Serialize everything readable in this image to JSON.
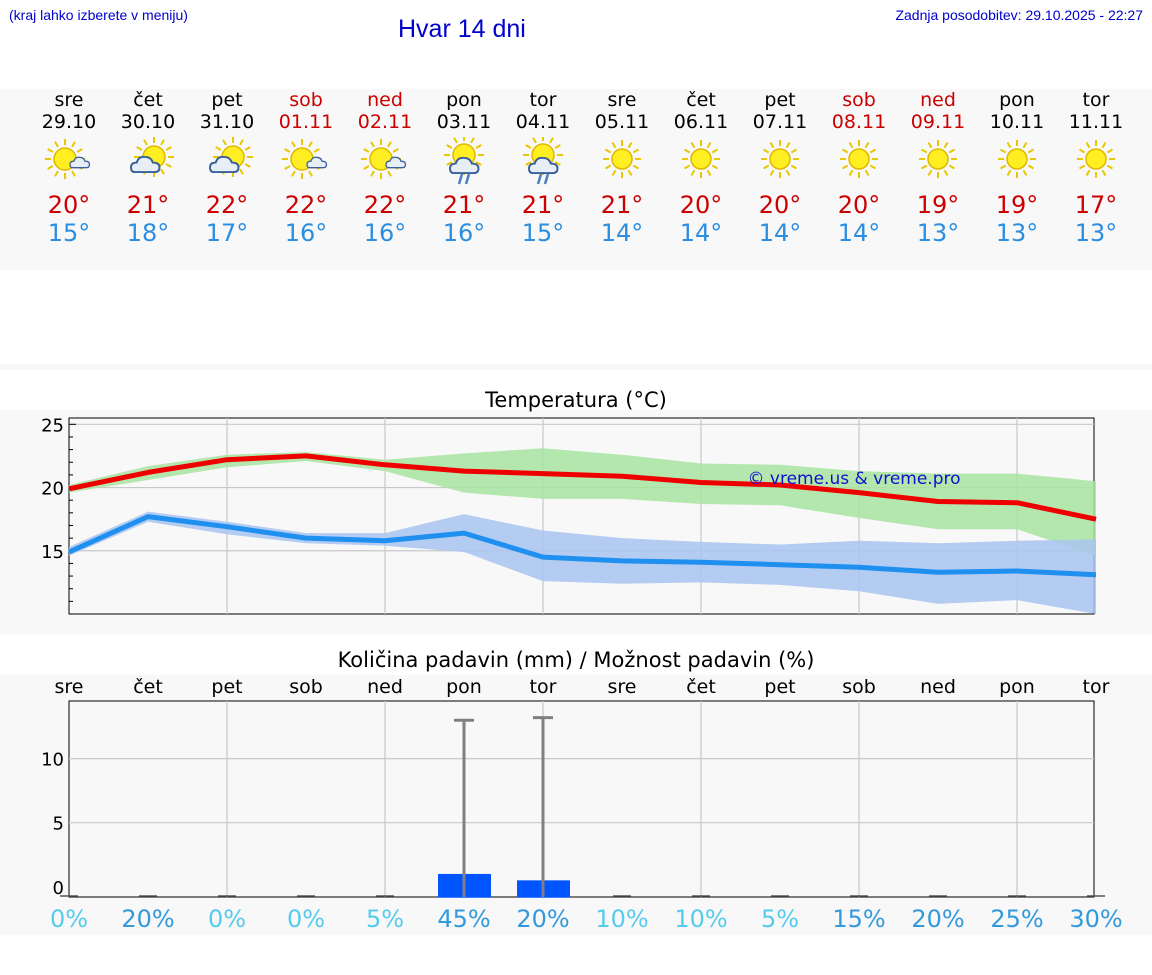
{
  "header": {
    "hint": "(kraj lahko izberete v meniju)",
    "title": "Hvar 14 dni",
    "updated": "Zadnja posodobitev: 29.10.2025 - 22:27"
  },
  "days": [
    {
      "name": "sre",
      "date": "29.10",
      "weekend": false,
      "icon": "sun-cloud-icon",
      "max": "20°",
      "min": "15°"
    },
    {
      "name": "čet",
      "date": "30.10",
      "weekend": false,
      "icon": "cloud-sun-icon",
      "max": "21°",
      "min": "18°"
    },
    {
      "name": "pet",
      "date": "31.10",
      "weekend": false,
      "icon": "cloud-sun-icon",
      "max": "22°",
      "min": "17°"
    },
    {
      "name": "sob",
      "date": "01.11",
      "weekend": true,
      "icon": "sun-cloud-icon",
      "max": "22°",
      "min": "16°"
    },
    {
      "name": "ned",
      "date": "02.11",
      "weekend": true,
      "icon": "sun-cloud-icon",
      "max": "22°",
      "min": "16°"
    },
    {
      "name": "pon",
      "date": "03.11",
      "weekend": false,
      "icon": "sun-cloud-rain-icon",
      "max": "21°",
      "min": "16°"
    },
    {
      "name": "tor",
      "date": "04.11",
      "weekend": false,
      "icon": "sun-cloud-rain-icon",
      "max": "21°",
      "min": "15°"
    },
    {
      "name": "sre",
      "date": "05.11",
      "weekend": false,
      "icon": "sun-icon",
      "max": "21°",
      "min": "14°"
    },
    {
      "name": "čet",
      "date": "06.11",
      "weekend": false,
      "icon": "sun-icon",
      "max": "20°",
      "min": "14°"
    },
    {
      "name": "pet",
      "date": "07.11",
      "weekend": false,
      "icon": "sun-icon",
      "max": "20°",
      "min": "14°"
    },
    {
      "name": "sob",
      "date": "08.11",
      "weekend": true,
      "icon": "sun-icon",
      "max": "20°",
      "min": "14°"
    },
    {
      "name": "ned",
      "date": "09.11",
      "weekend": true,
      "icon": "sun-icon",
      "max": "19°",
      "min": "13°"
    },
    {
      "name": "pon",
      "date": "10.11",
      "weekend": false,
      "icon": "sun-icon",
      "max": "19°",
      "min": "13°"
    },
    {
      "name": "tor",
      "date": "11.11",
      "weekend": false,
      "icon": "sun-icon",
      "max": "17°",
      "min": "13°"
    }
  ],
  "colors": {
    "max_line": "#ee0000",
    "max_band": "#a8e4a0",
    "min_line": "#2090f0",
    "min_band": "#a8c4f0",
    "precip_bar": "#0055ff",
    "error_bar": "#808080",
    "prob_low": "#55ccee",
    "prob_high": "#3399dd"
  },
  "chart_data": [
    {
      "type": "line",
      "title": "Temperatura (°C)",
      "watermark": "© vreme.us & vreme.pro",
      "yticks": [
        "25",
        "20",
        "15"
      ],
      "ytick_values": [
        25,
        20,
        15
      ],
      "ylim": [
        10,
        25.5
      ],
      "x": [
        0,
        1,
        2,
        3,
        4,
        5,
        6,
        7,
        8,
        9,
        10,
        11,
        12,
        13
      ],
      "series": [
        {
          "name": "max",
          "values": [
            19.9,
            21.2,
            22.2,
            22.5,
            21.8,
            21.3,
            21.1,
            20.9,
            20.4,
            20.2,
            19.6,
            18.9,
            18.8,
            17.5
          ],
          "band_low": [
            19.6,
            20.6,
            21.6,
            22.1,
            21.3,
            19.6,
            19.1,
            19.1,
            18.7,
            18.6,
            17.6,
            16.7,
            16.7,
            14.6
          ],
          "band_high": [
            20.2,
            21.7,
            22.6,
            22.8,
            22.2,
            22.7,
            23.1,
            22.6,
            21.9,
            21.8,
            21.3,
            21.1,
            21.1,
            20.5
          ]
        },
        {
          "name": "min",
          "values": [
            14.9,
            17.7,
            16.9,
            16.0,
            15.8,
            16.4,
            14.5,
            14.2,
            14.1,
            13.9,
            13.7,
            13.3,
            13.4,
            13.1
          ],
          "band_low": [
            14.6,
            17.3,
            16.3,
            15.6,
            15.4,
            14.9,
            12.6,
            12.4,
            12.5,
            12.3,
            11.8,
            10.8,
            11.1,
            10.0
          ],
          "band_high": [
            15.3,
            18.1,
            17.3,
            16.4,
            16.4,
            17.9,
            16.6,
            16.0,
            15.7,
            15.5,
            15.8,
            15.6,
            15.8,
            15.9
          ]
        }
      ]
    },
    {
      "type": "bar",
      "title": "Količina padavin (mm) / Možnost padavin (%)",
      "categories": [
        "sre",
        "čet",
        "pet",
        "sob",
        "ned",
        "pon",
        "tor",
        "sre",
        "čet",
        "pet",
        "sob",
        "ned",
        "pon",
        "tor"
      ],
      "yticks": [
        "10",
        "5",
        "0"
      ],
      "ytick_values": [
        10,
        5,
        0
      ],
      "ylim": [
        -0.8,
        14.5
      ],
      "values": [
        0,
        0,
        0,
        0,
        0,
        1.0,
        0.5,
        0,
        0,
        0,
        0,
        0,
        0,
        0
      ],
      "error_high": [
        0,
        0,
        0,
        0,
        0,
        13.0,
        13.2,
        0,
        0,
        0,
        0,
        0,
        0,
        0
      ],
      "probability": [
        "0%",
        "20%",
        "0%",
        "0%",
        "5%",
        "45%",
        "20%",
        "10%",
        "10%",
        "5%",
        "15%",
        "20%",
        "25%",
        "30%"
      ]
    }
  ]
}
